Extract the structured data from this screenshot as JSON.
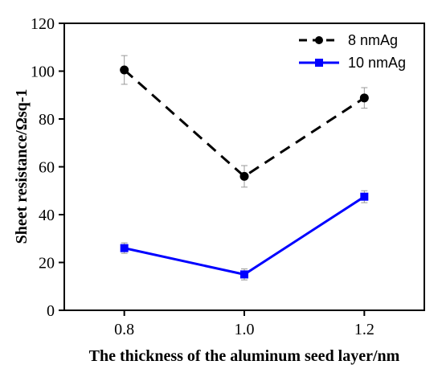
{
  "chart_data": {
    "type": "line",
    "xlabel": "The thickness of the aluminum seed layer/nm",
    "ylabel": "Sheet resistance/Ωsq-1",
    "xlim": [
      0.7,
      1.3
    ],
    "ylim": [
      0,
      120
    ],
    "x_ticks": [
      "0.8",
      "1.0",
      "1.2"
    ],
    "y_ticks": [
      "0",
      "20",
      "40",
      "60",
      "80",
      "100",
      "120"
    ],
    "x": [
      0.8,
      1.0,
      1.2
    ],
    "grid": false,
    "legend_position": "top-right",
    "series": [
      {
        "name": "8 nmAg",
        "values": [
          100.5,
          56,
          88.8
        ],
        "errors": [
          6,
          4.5,
          4.3
        ],
        "color": "#000000",
        "marker": "circle",
        "line_style": "dashed"
      },
      {
        "name": "10 nmAg",
        "values": [
          26,
          15,
          47.5
        ],
        "errors": [
          2.2,
          2.3,
          2.5
        ],
        "color": "#0000ff",
        "marker": "square",
        "line_style": "solid"
      }
    ]
  }
}
